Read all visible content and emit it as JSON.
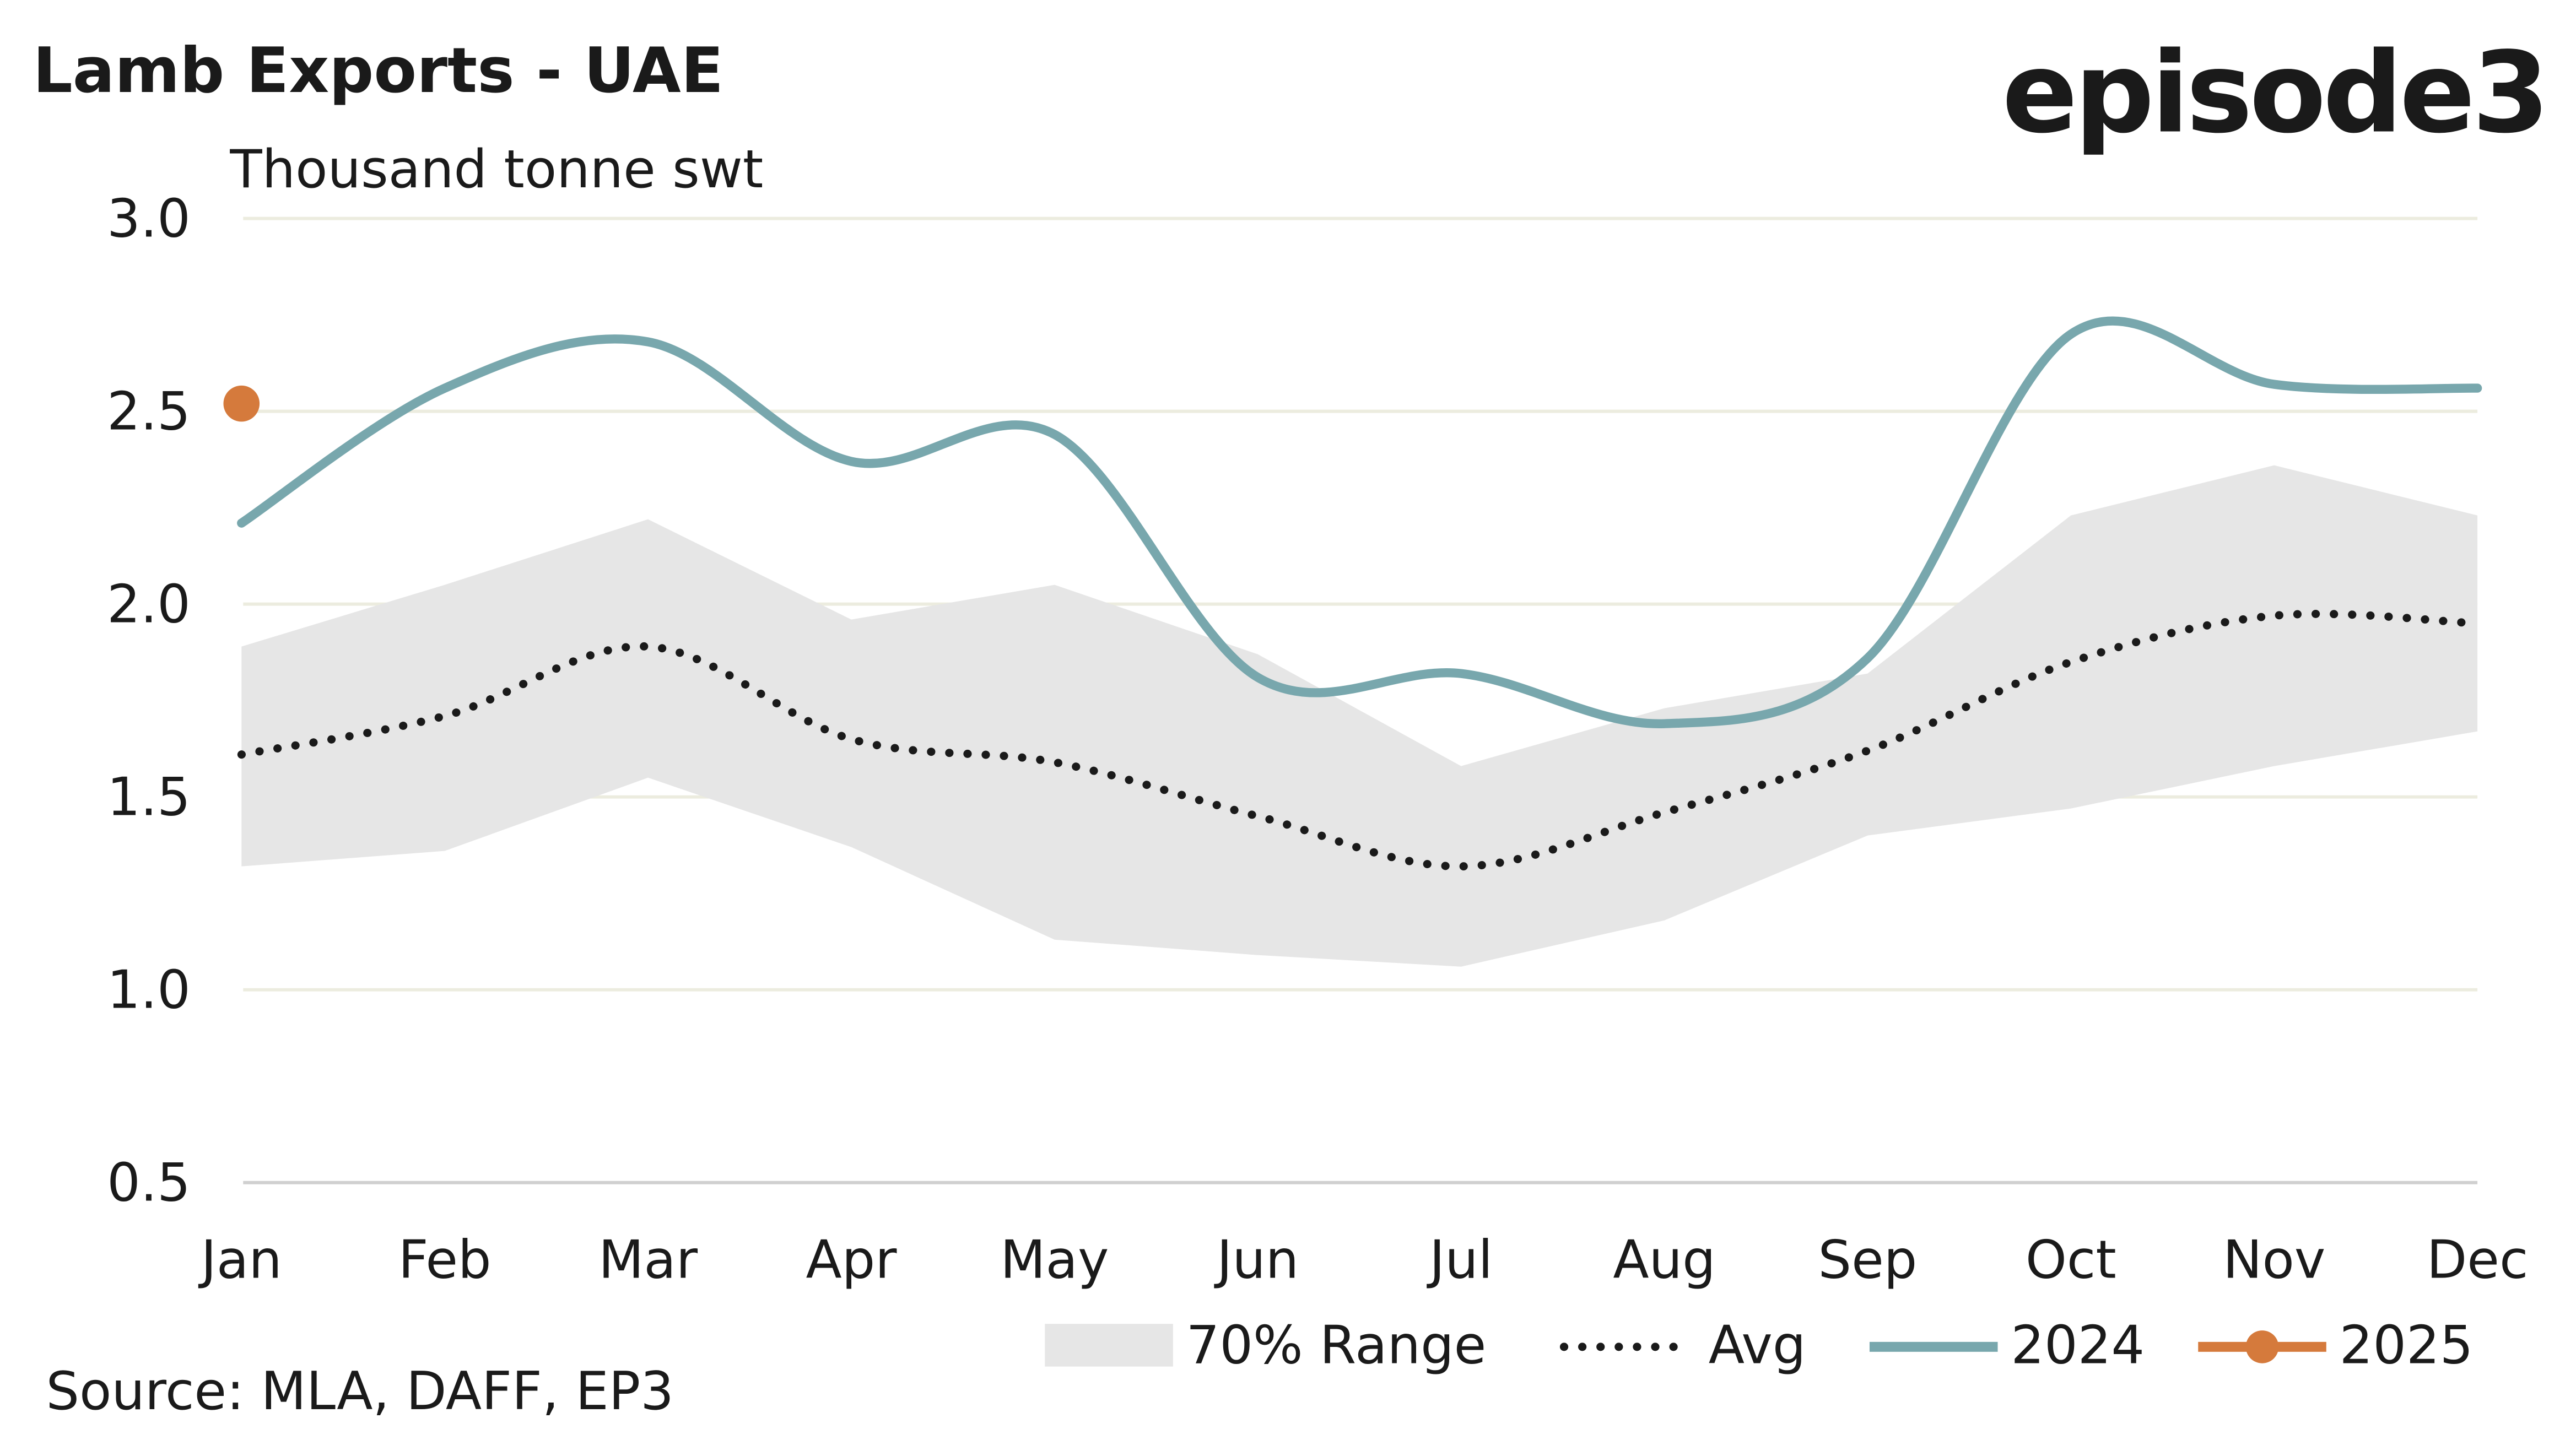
{
  "chart_data": {
    "type": "line",
    "title": "Lamb Exports - UAE",
    "ylabel": "Thousand tonne swt",
    "source": "Source: MLA, DAFF, EP3",
    "logo": "episode3",
    "categories": [
      "Jan",
      "Feb",
      "Mar",
      "Apr",
      "May",
      "Jun",
      "Jul",
      "Aug",
      "Sep",
      "Oct",
      "Nov",
      "Dec"
    ],
    "ylim": [
      0.5,
      3.0
    ],
    "yticks": [
      "0.5",
      "1.0",
      "1.5",
      "2.0",
      "2.5",
      "3.0"
    ],
    "grid": true,
    "legend_position": "bottom-right",
    "range": {
      "name": "70% Range",
      "color": "#e6e6e6",
      "upper": [
        1.89,
        2.05,
        2.22,
        1.96,
        2.05,
        1.87,
        1.58,
        1.73,
        1.82,
        2.23,
        2.36,
        2.23
      ],
      "lower": [
        1.32,
        1.36,
        1.55,
        1.37,
        1.13,
        1.09,
        1.06,
        1.18,
        1.4,
        1.47,
        1.58,
        1.67
      ]
    },
    "series": [
      {
        "name": "Avg",
        "color": "#1a1a1a",
        "style": "dotted",
        "values": [
          1.61,
          1.71,
          1.89,
          1.65,
          1.59,
          1.45,
          1.32,
          1.46,
          1.62,
          1.85,
          1.97,
          1.95
        ]
      },
      {
        "name": "2024",
        "color": "#78a7ad",
        "style": "solid",
        "values": [
          2.21,
          2.56,
          2.68,
          2.37,
          2.44,
          1.81,
          1.82,
          1.69,
          1.86,
          2.7,
          2.57,
          2.56
        ]
      },
      {
        "name": "2025",
        "color": "#d57a3c",
        "style": "marker",
        "values": [
          2.52,
          null,
          null,
          null,
          null,
          null,
          null,
          null,
          null,
          null,
          null,
          null
        ]
      }
    ]
  }
}
